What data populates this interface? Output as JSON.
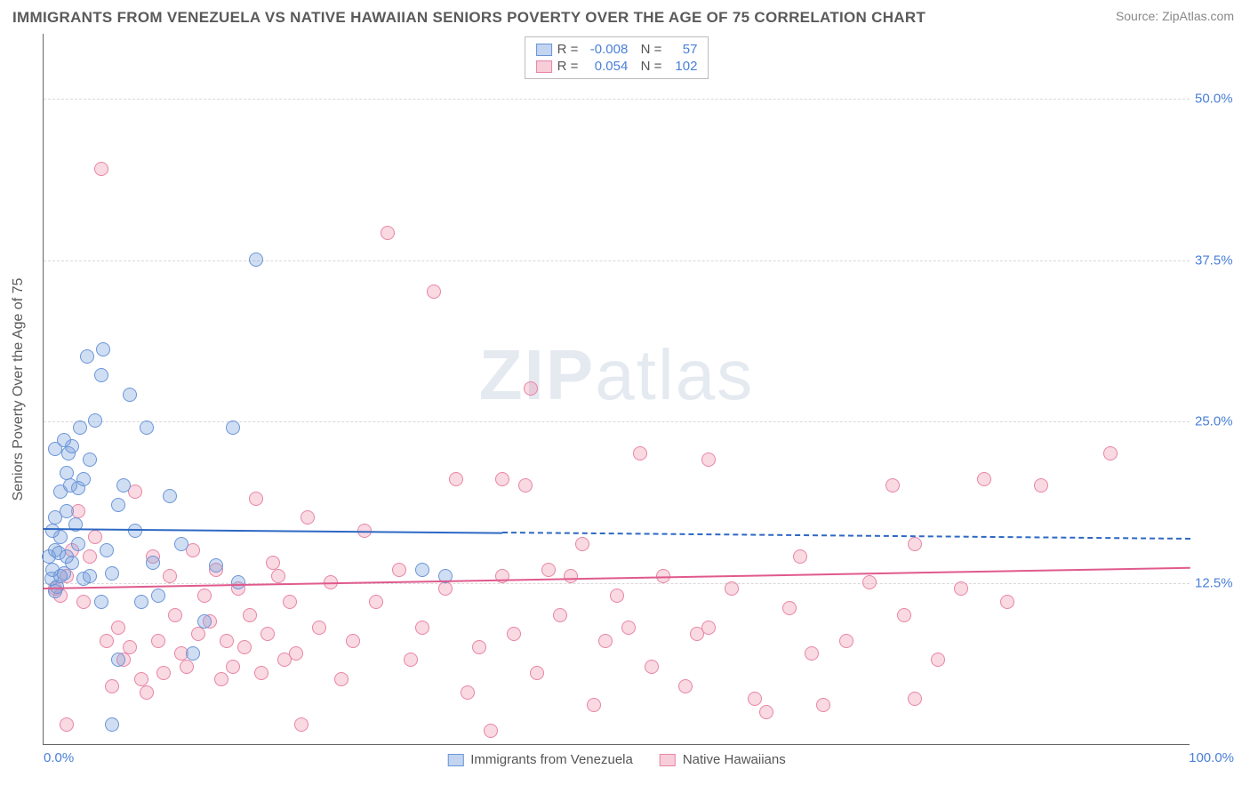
{
  "title": "IMMIGRANTS FROM VENEZUELA VS NATIVE HAWAIIAN SENIORS POVERTY OVER THE AGE OF 75 CORRELATION CHART",
  "source": "Source: ZipAtlas.com",
  "ylabel": "Seniors Poverty Over the Age of 75",
  "watermark_bold": "ZIP",
  "watermark_light": "atlas",
  "chart": {
    "type": "scatter",
    "xlim": [
      0,
      100
    ],
    "ylim": [
      0,
      55
    ],
    "grid_color": "#d8d8d8",
    "background_color": "#ffffff",
    "yticks": [
      {
        "v": 12.5,
        "label": "12.5%"
      },
      {
        "v": 25.0,
        "label": "25.0%"
      },
      {
        "v": 37.5,
        "label": "37.5%"
      },
      {
        "v": 50.0,
        "label": "50.0%"
      }
    ],
    "xticks": [
      {
        "v": 0,
        "label": "0.0%",
        "align": "left"
      },
      {
        "v": 100,
        "label": "100.0%",
        "align": "right"
      }
    ],
    "series": [
      {
        "name": "Immigrants from Venezuela",
        "color_fill": "rgba(120,160,220,0.35)",
        "color_stroke": "#6a95d8",
        "trend_color": "#2d68c4",
        "R": "-0.008",
        "N": "57",
        "trend": {
          "x1": 0,
          "y1": 16.8,
          "x2": 100,
          "y2": 16.0,
          "solid_until": 40
        },
        "points": [
          [
            0.5,
            14.5
          ],
          [
            0.7,
            12.8
          ],
          [
            0.8,
            13.5
          ],
          [
            1.0,
            15.0
          ],
          [
            1.2,
            12.2
          ],
          [
            1.0,
            11.8
          ],
          [
            1.3,
            14.8
          ],
          [
            1.5,
            16.0
          ],
          [
            1.0,
            17.5
          ],
          [
            1.8,
            13.2
          ],
          [
            2.0,
            18.0
          ],
          [
            1.5,
            19.5
          ],
          [
            2.0,
            21.0
          ],
          [
            2.2,
            22.5
          ],
          [
            2.5,
            23.0
          ],
          [
            3.0,
            19.8
          ],
          [
            2.8,
            17.0
          ],
          [
            3.5,
            20.5
          ],
          [
            4.0,
            22.0
          ],
          [
            3.2,
            24.5
          ],
          [
            4.5,
            25.0
          ],
          [
            3.8,
            30.0
          ],
          [
            5.0,
            28.5
          ],
          [
            5.5,
            15.0
          ],
          [
            6.0,
            13.2
          ],
          [
            6.5,
            18.5
          ],
          [
            7.0,
            20.0
          ],
          [
            7.5,
            27.0
          ],
          [
            8.0,
            16.5
          ],
          [
            9.0,
            24.5
          ],
          [
            9.5,
            14.0
          ],
          [
            10.0,
            11.5
          ],
          [
            11.0,
            19.2
          ],
          [
            12.0,
            15.5
          ],
          [
            13.0,
            7.0
          ],
          [
            6.0,
            1.5
          ],
          [
            6.5,
            6.5
          ],
          [
            15.0,
            13.8
          ],
          [
            16.5,
            24.5
          ],
          [
            17.0,
            12.5
          ],
          [
            18.5,
            37.5
          ],
          [
            2.5,
            14.0
          ],
          [
            3.0,
            15.5
          ],
          [
            3.5,
            12.8
          ],
          [
            4.0,
            13.0
          ],
          [
            1.0,
            22.8
          ],
          [
            1.8,
            23.5
          ],
          [
            2.3,
            20.0
          ],
          [
            5.0,
            11.0
          ],
          [
            0.8,
            16.5
          ],
          [
            1.5,
            13.0
          ],
          [
            2.0,
            14.5
          ],
          [
            5.2,
            30.5
          ],
          [
            33.0,
            13.5
          ],
          [
            35.0,
            13.0
          ],
          [
            14.0,
            9.5
          ],
          [
            8.5,
            11.0
          ]
        ]
      },
      {
        "name": "Native Hawaiians",
        "color_fill": "rgba(235,130,160,0.30)",
        "color_stroke": "#e885a5",
        "trend_color": "#e05a8c",
        "R": "0.054",
        "N": "102",
        "trend": {
          "x1": 0,
          "y1": 12.2,
          "x2": 100,
          "y2": 13.8,
          "solid_until": 100
        },
        "points": [
          [
            1.0,
            12.0
          ],
          [
            1.5,
            11.5
          ],
          [
            2.0,
            13.0
          ],
          [
            2.5,
            15.0
          ],
          [
            3.0,
            18.0
          ],
          [
            3.5,
            11.0
          ],
          [
            4.0,
            14.5
          ],
          [
            4.5,
            16.0
          ],
          [
            5.0,
            44.5
          ],
          [
            5.5,
            8.0
          ],
          [
            6.0,
            4.5
          ],
          [
            6.5,
            9.0
          ],
          [
            7.0,
            6.5
          ],
          [
            7.5,
            7.5
          ],
          [
            8.0,
            19.5
          ],
          [
            8.5,
            5.0
          ],
          [
            9.0,
            4.0
          ],
          [
            9.5,
            14.5
          ],
          [
            10.0,
            8.0
          ],
          [
            10.5,
            5.5
          ],
          [
            11.0,
            13.0
          ],
          [
            11.5,
            10.0
          ],
          [
            12.0,
            7.0
          ],
          [
            12.5,
            6.0
          ],
          [
            13.0,
            15.0
          ],
          [
            13.5,
            8.5
          ],
          [
            14.0,
            11.5
          ],
          [
            14.5,
            9.5
          ],
          [
            15.0,
            13.5
          ],
          [
            15.5,
            5.0
          ],
          [
            16.0,
            8.0
          ],
          [
            16.5,
            6.0
          ],
          [
            17.0,
            12.0
          ],
          [
            17.5,
            7.5
          ],
          [
            18.0,
            10.0
          ],
          [
            18.5,
            19.0
          ],
          [
            19.0,
            5.5
          ],
          [
            19.5,
            8.5
          ],
          [
            20.0,
            14.0
          ],
          [
            20.5,
            13.0
          ],
          [
            21.0,
            6.5
          ],
          [
            21.5,
            11.0
          ],
          [
            22.0,
            7.0
          ],
          [
            22.5,
            1.5
          ],
          [
            23.0,
            17.5
          ],
          [
            24.0,
            9.0
          ],
          [
            25.0,
            12.5
          ],
          [
            26.0,
            5.0
          ],
          [
            27.0,
            8.0
          ],
          [
            28.0,
            16.5
          ],
          [
            29.0,
            11.0
          ],
          [
            30.0,
            39.5
          ],
          [
            31.0,
            13.5
          ],
          [
            32.0,
            6.5
          ],
          [
            33.0,
            9.0
          ],
          [
            34.0,
            35.0
          ],
          [
            35.0,
            12.0
          ],
          [
            36.0,
            20.5
          ],
          [
            37.0,
            4.0
          ],
          [
            38.0,
            7.5
          ],
          [
            39.0,
            1.0
          ],
          [
            40.0,
            13.0
          ],
          [
            41.0,
            8.5
          ],
          [
            42.0,
            20.0
          ],
          [
            42.5,
            27.5
          ],
          [
            43.0,
            5.5
          ],
          [
            44.0,
            13.5
          ],
          [
            45.0,
            10.0
          ],
          [
            46.0,
            13.0
          ],
          [
            47.0,
            15.5
          ],
          [
            48.0,
            3.0
          ],
          [
            49.0,
            8.0
          ],
          [
            50.0,
            11.5
          ],
          [
            51.0,
            9.0
          ],
          [
            52.0,
            22.5
          ],
          [
            53.0,
            6.0
          ],
          [
            54.0,
            13.0
          ],
          [
            56.0,
            4.5
          ],
          [
            57.0,
            8.5
          ],
          [
            58.0,
            22.0
          ],
          [
            60.0,
            12.0
          ],
          [
            62.0,
            3.5
          ],
          [
            63.0,
            2.5
          ],
          [
            65.0,
            10.5
          ],
          [
            66.0,
            14.5
          ],
          [
            67.0,
            7.0
          ],
          [
            68.0,
            3.0
          ],
          [
            70.0,
            8.0
          ],
          [
            72.0,
            12.5
          ],
          [
            74.0,
            20.0
          ],
          [
            75.0,
            10.0
          ],
          [
            76.0,
            15.5
          ],
          [
            78.0,
            6.5
          ],
          [
            80.0,
            12.0
          ],
          [
            82.0,
            20.5
          ],
          [
            84.0,
            11.0
          ],
          [
            87.0,
            20.0
          ],
          [
            93.0,
            22.5
          ],
          [
            76.0,
            3.5
          ],
          [
            58.0,
            9.0
          ],
          [
            40.0,
            20.5
          ],
          [
            2.0,
            1.5
          ]
        ]
      }
    ]
  },
  "legend_bottom": [
    {
      "swatch": "blue",
      "label": "Immigrants from Venezuela"
    },
    {
      "swatch": "pink",
      "label": "Native Hawaiians"
    }
  ]
}
